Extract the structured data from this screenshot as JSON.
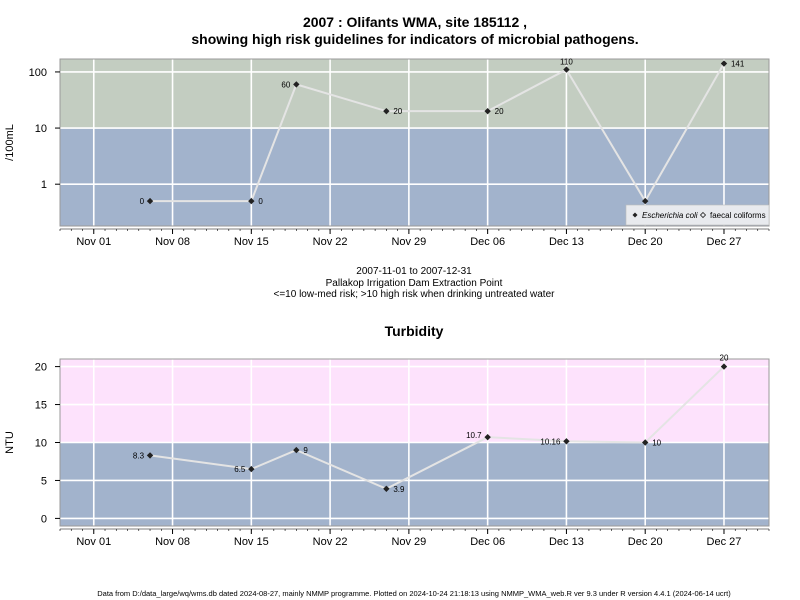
{
  "page": {
    "title_line1": "2007 : Olifants WMA, site 185112 ,",
    "title_line2": "showing high risk guidelines for indicators of microbial pathogens.",
    "period": "2007-11-01 to 2007-12-31",
    "site_name": "Pallakop Irrigation Dam Extraction Point",
    "guideline_note": "<=10 low-med risk; >10 high risk when drinking untreated water",
    "footer": "Data from D:/data_large/wq/wms.db dated 2024-08-27, mainly NMMP programme. Plotted on 2024-10-24 21:18:13 using NMMP_WMA_web.R ver 9.3 under R version 4.4.1 (2024-06-14 ucrt)"
  },
  "colors": {
    "low_band": "#a2b3cc",
    "high_band_microbial": "#c3cdc1",
    "high_band_turbidity": "#fde2fc",
    "grid": "#ffffff",
    "line": "#e4e4e4",
    "point": "#222222"
  },
  "chart_data": [
    {
      "type": "line",
      "ylabel": "/100mL",
      "y_scale": "log10",
      "ylim": [
        0.18,
        170
      ],
      "xlim": [
        "2007-10-29",
        "2007-12-31"
      ],
      "threshold": 10,
      "x_ticks": [
        "Nov 01",
        "Nov 08",
        "Nov 15",
        "Nov 22",
        "Nov 29",
        "Dec 06",
        "Dec 13",
        "Dec 20",
        "Dec 27"
      ],
      "x_tick_dates": [
        "2007-11-01",
        "2007-11-08",
        "2007-11-15",
        "2007-11-22",
        "2007-11-29",
        "2007-12-06",
        "2007-12-13",
        "2007-12-20",
        "2007-12-27"
      ],
      "y_ticks": [
        1,
        10,
        100
      ],
      "y_tick_labels": [
        "1",
        "10",
        "100"
      ],
      "legend": {
        "position": "bottom-right",
        "entries": [
          "Escherichia coli",
          "faecal coliforms"
        ]
      },
      "series": [
        {
          "name": "Escherichia coli",
          "points": [
            {
              "x": "2007-11-06",
              "y": 0,
              "label": "0"
            },
            {
              "x": "2007-11-15",
              "y": 0,
              "label": "0"
            },
            {
              "x": "2007-11-19",
              "y": 60,
              "label": "60"
            },
            {
              "x": "2007-11-27",
              "y": 20,
              "label": "20"
            },
            {
              "x": "2007-12-06",
              "y": 20,
              "label": "20"
            },
            {
              "x": "2007-12-13",
              "y": 110,
              "label": "110"
            },
            {
              "x": "2007-12-20",
              "y": 0,
              "label": "0"
            },
            {
              "x": "2007-12-27",
              "y": 141,
              "label": "141"
            }
          ]
        }
      ]
    },
    {
      "type": "line",
      "title": "Turbidity",
      "ylabel": "NTU",
      "ylim": [
        -1,
        21
      ],
      "xlim": [
        "2007-10-29",
        "2007-12-31"
      ],
      "threshold": 10,
      "x_ticks": [
        "Nov 01",
        "Nov 08",
        "Nov 15",
        "Nov 22",
        "Nov 29",
        "Dec 06",
        "Dec 13",
        "Dec 20",
        "Dec 27"
      ],
      "x_tick_dates": [
        "2007-11-01",
        "2007-11-08",
        "2007-11-15",
        "2007-11-22",
        "2007-11-29",
        "2007-12-06",
        "2007-12-13",
        "2007-12-20",
        "2007-12-27"
      ],
      "y_ticks": [
        0,
        5,
        10,
        15,
        20
      ],
      "y_tick_labels": [
        "0",
        "5",
        "10",
        "15",
        "20"
      ],
      "series": [
        {
          "points": [
            {
              "x": "2007-11-06",
              "y": 8.3,
              "label": "8.3"
            },
            {
              "x": "2007-11-15",
              "y": 6.5,
              "label": "6.5"
            },
            {
              "x": "2007-11-19",
              "y": 9,
              "label": "9"
            },
            {
              "x": "2007-11-27",
              "y": 3.9,
              "label": "3.9"
            },
            {
              "x": "2007-12-06",
              "y": 10.7,
              "label": "10.7"
            },
            {
              "x": "2007-12-13",
              "y": 10.16,
              "label": "10.16"
            },
            {
              "x": "2007-12-20",
              "y": 10,
              "label": "10"
            },
            {
              "x": "2007-12-27",
              "y": 20,
              "label": "20"
            }
          ]
        }
      ]
    }
  ]
}
